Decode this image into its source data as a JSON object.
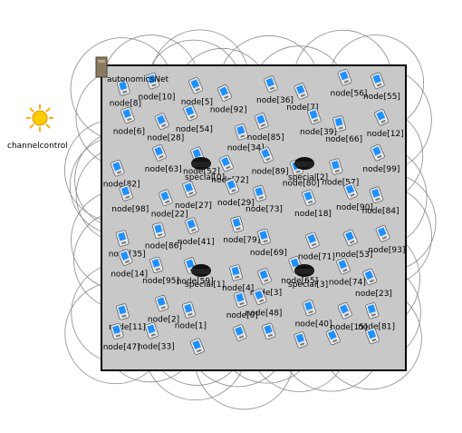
{
  "network": {
    "name": "autonomicsNet"
  },
  "channel_control": {
    "label": "channelcontrol",
    "icon": "sun-icon"
  },
  "colors": {
    "field_fill": "#c8c8c8",
    "field_border": "#000000",
    "node_screen": "#1e90ff",
    "range_circle": "#8a8a8a",
    "sun": "#ffcc00"
  },
  "specials": [
    "special[0]",
    "special[1]",
    "special[2]",
    "special[3]"
  ],
  "node_labels": [
    "node[8]",
    "node[10]",
    "node[5]",
    "node[92]",
    "node[36]",
    "node[7]",
    "node[56]",
    "node[55]",
    "node[6]",
    "node[28]",
    "node[54]",
    "node[34]",
    "node[85]",
    "node[39]",
    "node[66]",
    "node[12]",
    "node[82]",
    "node[63]",
    "node[52]",
    "node[72]",
    "node[89]",
    "node[80]",
    "node[57]",
    "node[99]",
    "node[98]",
    "node[22]",
    "node[27]",
    "node[29]",
    "node[73]",
    "node[18]",
    "node[90]",
    "node[84]",
    "node[35]",
    "node[86]",
    "node[41]",
    "node[79]",
    "node[69]",
    "node[71]",
    "node[53]",
    "node[93]",
    "node[14]",
    "node[95]",
    "node[59]",
    "node[4]",
    "node[3]",
    "node[65]",
    "node[74]",
    "node[23]",
    "node[11]",
    "node[2]",
    "node[1]",
    "node[0]",
    "node[48]",
    "node[40]",
    "node[15]",
    "node[81]",
    "node[47]",
    "node[33]"
  ]
}
